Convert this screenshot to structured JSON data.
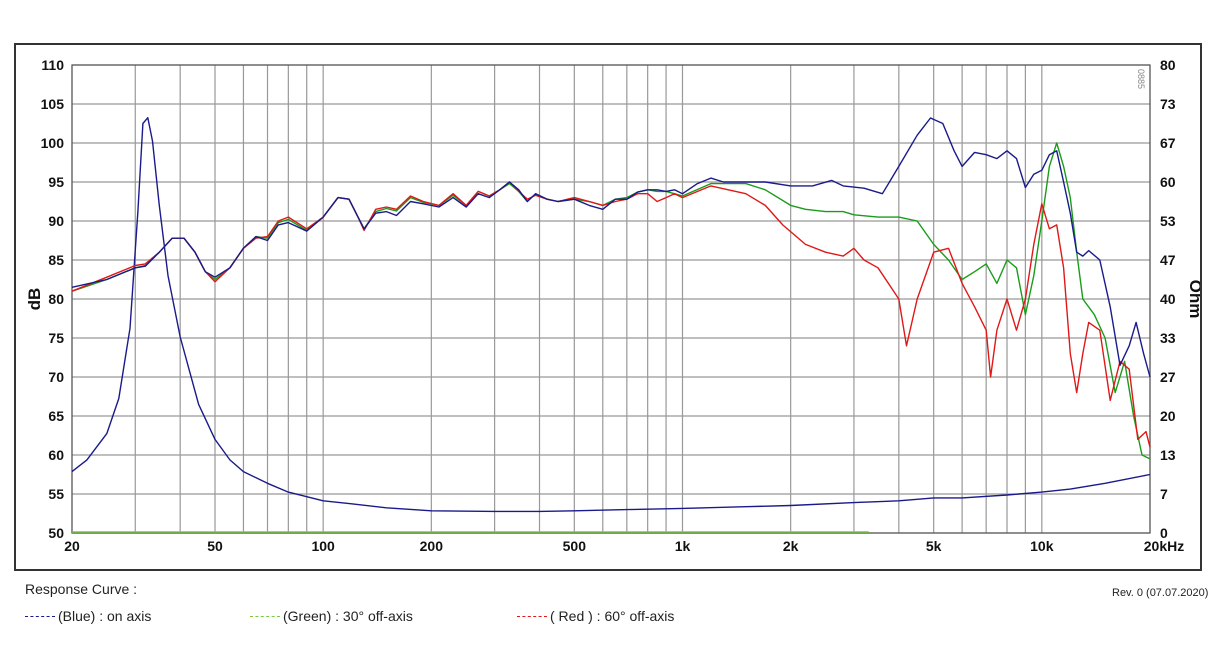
{
  "chart_data": {
    "type": "line",
    "x_scale": "log",
    "x_range": [
      20,
      20000
    ],
    "x_tick_labels": [
      {
        "value": 20,
        "label": "20"
      },
      {
        "value": 50,
        "label": "50"
      },
      {
        "value": 100,
        "label": "100"
      },
      {
        "value": 200,
        "label": "200"
      },
      {
        "value": 500,
        "label": "500"
      },
      {
        "value": 1000,
        "label": "1k"
      },
      {
        "value": 2000,
        "label": "2k"
      },
      {
        "value": 5000,
        "label": "5k"
      },
      {
        "value": 10000,
        "label": "10k"
      },
      {
        "value": 20000,
        "label": "20kHz"
      }
    ],
    "y_left": {
      "label": "dB",
      "range": [
        50,
        110
      ],
      "ticks": [
        110,
        105,
        100,
        95,
        90,
        85,
        80,
        75,
        70,
        65,
        60,
        55,
        50
      ]
    },
    "y_right": {
      "label": "Ohm",
      "range": [
        0,
        80
      ],
      "tick_labels": [
        "80",
        "73",
        "67",
        "60",
        "53",
        "47",
        "40",
        "33",
        "27",
        "20",
        "13",
        "7",
        "0"
      ]
    },
    "grid": true,
    "watermark": "0885",
    "series": [
      {
        "name": "(Blue)  : on axis",
        "axis": "left",
        "color": "#1a1a8c",
        "points": [
          [
            20,
            81.5
          ],
          [
            25,
            82.5
          ],
          [
            30,
            84
          ],
          [
            32,
            84.2
          ],
          [
            35,
            86
          ],
          [
            38,
            87.8
          ],
          [
            41,
            87.8
          ],
          [
            44,
            86
          ],
          [
            47,
            83.5
          ],
          [
            50,
            82.8
          ],
          [
            55,
            84
          ],
          [
            60,
            86.5
          ],
          [
            65,
            88
          ],
          [
            70,
            87.5
          ],
          [
            75,
            89.5
          ],
          [
            80,
            89.8
          ],
          [
            90,
            88.7
          ],
          [
            100,
            90.5
          ],
          [
            110,
            93
          ],
          [
            118,
            92.8
          ],
          [
            125,
            90.5
          ],
          [
            130,
            89
          ],
          [
            140,
            91
          ],
          [
            150,
            91.2
          ],
          [
            160,
            90.7
          ],
          [
            175,
            92.5
          ],
          [
            190,
            92.2
          ],
          [
            210,
            91.8
          ],
          [
            230,
            93
          ],
          [
            250,
            91.8
          ],
          [
            270,
            93.5
          ],
          [
            290,
            93
          ],
          [
            310,
            94
          ],
          [
            330,
            95
          ],
          [
            350,
            94
          ],
          [
            370,
            92.5
          ],
          [
            390,
            93.5
          ],
          [
            420,
            92.8
          ],
          [
            450,
            92.5
          ],
          [
            500,
            92.8
          ],
          [
            550,
            92
          ],
          [
            600,
            91.5
          ],
          [
            650,
            92.8
          ],
          [
            700,
            92.8
          ],
          [
            750,
            93.7
          ],
          [
            800,
            94
          ],
          [
            850,
            94
          ],
          [
            900,
            93.8
          ],
          [
            950,
            94
          ],
          [
            1000,
            93.5
          ],
          [
            1100,
            94.8
          ],
          [
            1200,
            95.5
          ],
          [
            1300,
            95
          ],
          [
            1500,
            95
          ],
          [
            1700,
            95
          ],
          [
            2000,
            94.5
          ],
          [
            2300,
            94.5
          ],
          [
            2600,
            95.2
          ],
          [
            2800,
            94.5
          ],
          [
            3200,
            94.2
          ],
          [
            3600,
            93.5
          ],
          [
            4000,
            97
          ],
          [
            4500,
            101
          ],
          [
            4900,
            103.2
          ],
          [
            5300,
            102.5
          ],
          [
            5700,
            99
          ],
          [
            6000,
            97
          ],
          [
            6500,
            98.8
          ],
          [
            7000,
            98.5
          ],
          [
            7500,
            98
          ],
          [
            8000,
            99
          ],
          [
            8500,
            98
          ],
          [
            9000,
            94.3
          ],
          [
            9500,
            96
          ],
          [
            10000,
            96.5
          ],
          [
            10500,
            98.5
          ],
          [
            11000,
            99
          ],
          [
            11500,
            95
          ],
          [
            12000,
            91
          ],
          [
            12500,
            86
          ],
          [
            13000,
            85.5
          ],
          [
            13500,
            86.2
          ],
          [
            14500,
            85
          ],
          [
            15500,
            79
          ],
          [
            16500,
            71.5
          ],
          [
            17500,
            74
          ],
          [
            18300,
            77
          ],
          [
            19200,
            73
          ],
          [
            20000,
            70
          ]
        ]
      },
      {
        "name": "(Green) : 30° off-axis",
        "axis": "left",
        "color": "#1a9c1a",
        "points": [
          [
            20,
            81
          ],
          [
            25,
            82.5
          ],
          [
            30,
            84
          ],
          [
            32,
            84.3
          ],
          [
            35,
            86
          ],
          [
            38,
            87.8
          ],
          [
            41,
            87.8
          ],
          [
            44,
            86
          ],
          [
            47,
            83.5
          ],
          [
            50,
            82.5
          ],
          [
            55,
            84
          ],
          [
            60,
            86.5
          ],
          [
            65,
            88
          ],
          [
            70,
            87.8
          ],
          [
            75,
            89.8
          ],
          [
            80,
            90.2
          ],
          [
            90,
            88.8
          ],
          [
            100,
            90.5
          ],
          [
            110,
            93
          ],
          [
            118,
            92.8
          ],
          [
            125,
            90.5
          ],
          [
            130,
            89
          ],
          [
            140,
            91.2
          ],
          [
            150,
            91.6
          ],
          [
            160,
            91.3
          ],
          [
            175,
            93
          ],
          [
            190,
            92.4
          ],
          [
            210,
            92
          ],
          [
            230,
            93.3
          ],
          [
            250,
            92
          ],
          [
            270,
            93.8
          ],
          [
            290,
            93.2
          ],
          [
            310,
            94
          ],
          [
            330,
            94.8
          ],
          [
            350,
            93.8
          ],
          [
            370,
            92.5
          ],
          [
            390,
            93.5
          ],
          [
            420,
            92.8
          ],
          [
            450,
            92.5
          ],
          [
            500,
            92.8
          ],
          [
            550,
            92.5
          ],
          [
            600,
            92
          ],
          [
            650,
            92.8
          ],
          [
            700,
            93
          ],
          [
            750,
            93.7
          ],
          [
            800,
            94
          ],
          [
            850,
            93.8
          ],
          [
            900,
            93.8
          ],
          [
            950,
            93.5
          ],
          [
            1000,
            93.2
          ],
          [
            1200,
            94.8
          ],
          [
            1500,
            94.8
          ],
          [
            1700,
            94
          ],
          [
            2000,
            92
          ],
          [
            2200,
            91.5
          ],
          [
            2500,
            91.2
          ],
          [
            2800,
            91.2
          ],
          [
            3000,
            90.8
          ],
          [
            3500,
            90.5
          ],
          [
            4000,
            90.5
          ],
          [
            4500,
            90
          ],
          [
            5000,
            87
          ],
          [
            5500,
            85
          ],
          [
            6000,
            82.5
          ],
          [
            6500,
            83.5
          ],
          [
            7000,
            84.5
          ],
          [
            7500,
            82
          ],
          [
            8000,
            85
          ],
          [
            8500,
            84
          ],
          [
            9000,
            78
          ],
          [
            9500,
            83
          ],
          [
            10000,
            90
          ],
          [
            10500,
            97
          ],
          [
            11000,
            100
          ],
          [
            11500,
            97
          ],
          [
            12000,
            93
          ],
          [
            12500,
            86
          ],
          [
            13000,
            80
          ],
          [
            14000,
            78
          ],
          [
            15000,
            75
          ],
          [
            16000,
            68
          ],
          [
            17000,
            72
          ],
          [
            18000,
            65
          ],
          [
            19000,
            60
          ],
          [
            20000,
            59.5
          ]
        ]
      },
      {
        "name": "( Red ) : 60° off-axis",
        "axis": "left",
        "color": "#e01818",
        "points": [
          [
            20,
            81
          ],
          [
            25,
            82.8
          ],
          [
            30,
            84.3
          ],
          [
            32,
            84.5
          ],
          [
            35,
            86
          ],
          [
            38,
            87.8
          ],
          [
            41,
            87.8
          ],
          [
            44,
            86
          ],
          [
            47,
            83.5
          ],
          [
            50,
            82.2
          ],
          [
            55,
            84
          ],
          [
            60,
            86.5
          ],
          [
            65,
            87.8
          ],
          [
            70,
            88
          ],
          [
            75,
            90
          ],
          [
            80,
            90.5
          ],
          [
            90,
            89
          ],
          [
            100,
            90.5
          ],
          [
            110,
            93
          ],
          [
            118,
            92.8
          ],
          [
            125,
            90.5
          ],
          [
            130,
            88.8
          ],
          [
            140,
            91.5
          ],
          [
            150,
            91.8
          ],
          [
            160,
            91.5
          ],
          [
            175,
            93.2
          ],
          [
            190,
            92.5
          ],
          [
            210,
            92
          ],
          [
            230,
            93.5
          ],
          [
            250,
            92
          ],
          [
            270,
            93.8
          ],
          [
            290,
            93.2
          ],
          [
            310,
            94
          ],
          [
            330,
            95
          ],
          [
            350,
            93.8
          ],
          [
            370,
            92.8
          ],
          [
            390,
            93.3
          ],
          [
            420,
            92.8
          ],
          [
            450,
            92.5
          ],
          [
            500,
            93
          ],
          [
            550,
            92.5
          ],
          [
            600,
            92
          ],
          [
            650,
            92.5
          ],
          [
            700,
            92.8
          ],
          [
            750,
            93.5
          ],
          [
            800,
            93.5
          ],
          [
            850,
            92.5
          ],
          [
            900,
            93
          ],
          [
            950,
            93.5
          ],
          [
            1000,
            93
          ],
          [
            1200,
            94.5
          ],
          [
            1500,
            93.5
          ],
          [
            1700,
            92
          ],
          [
            1900,
            89.5
          ],
          [
            2200,
            87
          ],
          [
            2500,
            86
          ],
          [
            2800,
            85.5
          ],
          [
            3000,
            86.5
          ],
          [
            3200,
            85
          ],
          [
            3500,
            84
          ],
          [
            4000,
            80
          ],
          [
            4200,
            74
          ],
          [
            4500,
            80
          ],
          [
            5000,
            86
          ],
          [
            5500,
            86.5
          ],
          [
            6000,
            82
          ],
          [
            6500,
            79
          ],
          [
            7000,
            76
          ],
          [
            7200,
            70
          ],
          [
            7500,
            76
          ],
          [
            8000,
            80
          ],
          [
            8500,
            76
          ],
          [
            9000,
            80
          ],
          [
            9500,
            87
          ],
          [
            10000,
            92.2
          ],
          [
            10500,
            89
          ],
          [
            11000,
            89.5
          ],
          [
            11500,
            84
          ],
          [
            12000,
            73
          ],
          [
            12500,
            68
          ],
          [
            13000,
            73
          ],
          [
            13500,
            77
          ],
          [
            14500,
            76
          ],
          [
            15500,
            67
          ],
          [
            16500,
            72
          ],
          [
            17500,
            71
          ],
          [
            18500,
            62
          ],
          [
            19500,
            63
          ],
          [
            20000,
            61
          ]
        ]
      },
      {
        "name": "Impedance",
        "axis": "right",
        "color": "#1a1a8c",
        "points": [
          [
            20,
            10.5
          ],
          [
            22,
            12.5
          ],
          [
            25,
            17
          ],
          [
            27,
            23
          ],
          [
            29,
            35
          ],
          [
            30.5,
            55
          ],
          [
            31.5,
            70
          ],
          [
            32.5,
            71
          ],
          [
            33.5,
            67
          ],
          [
            35,
            56
          ],
          [
            37,
            44
          ],
          [
            40,
            33.5
          ],
          [
            45,
            22
          ],
          [
            50,
            16
          ],
          [
            55,
            12.5
          ],
          [
            60,
            10.5
          ],
          [
            70,
            8.5
          ],
          [
            80,
            7
          ],
          [
            100,
            5.5
          ],
          [
            120,
            5
          ],
          [
            150,
            4.3
          ],
          [
            200,
            3.8
          ],
          [
            300,
            3.7
          ],
          [
            400,
            3.7
          ],
          [
            500,
            3.8
          ],
          [
            700,
            4
          ],
          [
            1000,
            4.2
          ],
          [
            1500,
            4.5
          ],
          [
            2000,
            4.7
          ],
          [
            3000,
            5.2
          ],
          [
            4000,
            5.5
          ],
          [
            5000,
            6
          ],
          [
            6000,
            6
          ],
          [
            8000,
            6.5
          ],
          [
            10000,
            7
          ],
          [
            12000,
            7.5
          ],
          [
            15000,
            8.5
          ],
          [
            20000,
            10
          ]
        ]
      }
    ]
  },
  "footer": {
    "title": "Response Curve :",
    "revision": "Rev. 0 (07.07.2020)",
    "legend": [
      {
        "label": "(Blue)  : on axis",
        "color": "#1a1a8c"
      },
      {
        "label": "(Green) : 30° off-axis",
        "color": "#7ac943"
      },
      {
        "label": "( Red ) : 60° off-axis",
        "color": "#e01818"
      }
    ]
  }
}
